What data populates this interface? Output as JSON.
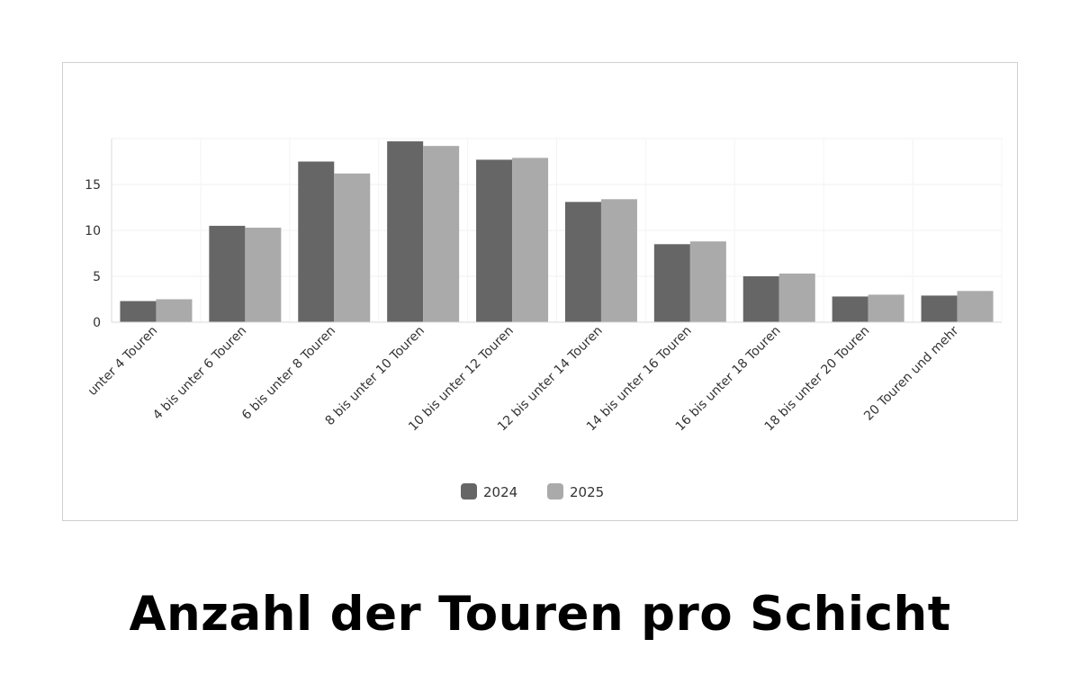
{
  "chart_data": {
    "type": "bar",
    "categories": [
      "unter 4 Touren",
      "4 bis unter 6 Touren",
      "6 bis unter 8 Touren",
      "8 bis unter 10 Touren",
      "10 bis unter 12 Touren",
      "12 bis unter 14 Touren",
      "14 bis unter 16 Touren",
      "16 bis unter 18 Touren",
      "18 bis unter 20 Touren",
      "20 Touren und mehr"
    ],
    "series": [
      {
        "name": "2024",
        "color": "#666666",
        "values": [
          2.3,
          10.5,
          17.5,
          19.7,
          17.7,
          13.1,
          8.5,
          5.0,
          2.8,
          2.9
        ]
      },
      {
        "name": "2025",
        "color": "#aaaaaa",
        "values": [
          2.5,
          10.3,
          16.2,
          19.2,
          17.9,
          13.4,
          8.8,
          5.3,
          3.0,
          3.4
        ]
      }
    ],
    "yticks": [
      0,
      5,
      10,
      15
    ],
    "ylim": [
      0,
      20
    ],
    "grid": true,
    "legend": "bottom-center",
    "title": "Anzahl der Touren pro Schicht",
    "xlabel": "",
    "ylabel": ""
  }
}
